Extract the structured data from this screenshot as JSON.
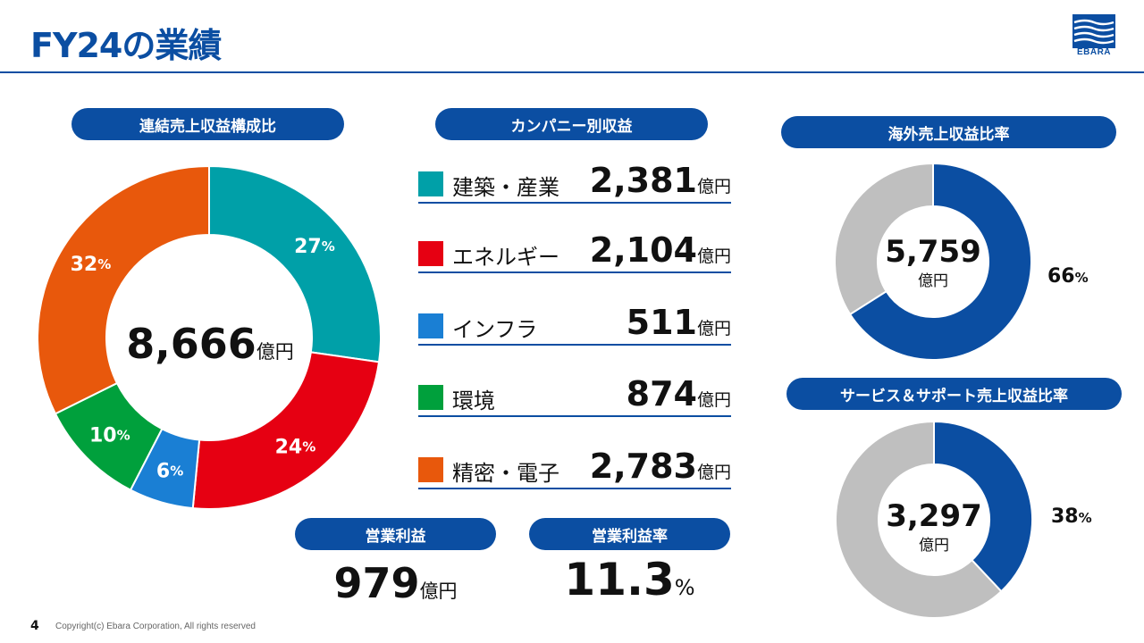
{
  "header": {
    "title": "FY24の業績",
    "logo_text": "EBARA"
  },
  "colors": {
    "brand": "#0b4ea2",
    "construction": "#00a0a8",
    "energy": "#e60012",
    "infra": "#1a7fd4",
    "environment": "#00a03c",
    "precision": "#e8580c",
    "grey": "#bfbfbf"
  },
  "left_section": {
    "label": "連結売上収益構成比",
    "total_value": "8,666",
    "total_unit": "億円"
  },
  "middle_section": {
    "label": "カンパニー別収益",
    "companies": [
      {
        "name": "建築・産業",
        "value": "2,381",
        "unit": "億円"
      },
      {
        "name": "エネルギー",
        "value": "2,104",
        "unit": "億円"
      },
      {
        "name": "インフラ",
        "value": "511",
        "unit": "億円"
      },
      {
        "name": "環境",
        "value": "874",
        "unit": "億円"
      },
      {
        "name": "精密・電子",
        "value": "2,783",
        "unit": "億円"
      }
    ]
  },
  "operating_profit": {
    "label": "営業利益",
    "value": "979",
    "unit": "億円"
  },
  "operating_margin": {
    "label": "営業利益率",
    "value": "11.3",
    "unit": "%"
  },
  "overseas": {
    "label": "海外売上収益比率",
    "value": "5,759",
    "unit": "億円"
  },
  "service": {
    "label": "サービス＆サポート売上収益比率",
    "value": "3,297",
    "unit": "億円"
  },
  "footer": {
    "page_number": "4",
    "copyright": "Copyright(c) Ebara Corporation, All rights reserved"
  },
  "chart_data": [
    {
      "type": "pie",
      "title": "連結売上収益構成比",
      "categories": [
        "建築・産業",
        "エネルギー",
        "インフラ",
        "環境",
        "精密・電子"
      ],
      "values": [
        27,
        24,
        6,
        10,
        32
      ],
      "labels": [
        "27",
        "24",
        "6",
        "10",
        "32"
      ],
      "unit": "%",
      "colors": [
        "#00a0a8",
        "#e60012",
        "#1a7fd4",
        "#00a03c",
        "#e8580c"
      ]
    },
    {
      "type": "pie",
      "title": "海外売上収益比率",
      "values": [
        66,
        34
      ],
      "labels": [
        "66",
        ""
      ],
      "unit": "%",
      "colors": [
        "#0b4ea2",
        "#bfbfbf"
      ]
    },
    {
      "type": "pie",
      "title": "サービス＆サポート売上収益比率",
      "values": [
        38,
        62
      ],
      "labels": [
        "38",
        ""
      ],
      "unit": "%",
      "colors": [
        "#0b4ea2",
        "#bfbfbf"
      ]
    }
  ]
}
